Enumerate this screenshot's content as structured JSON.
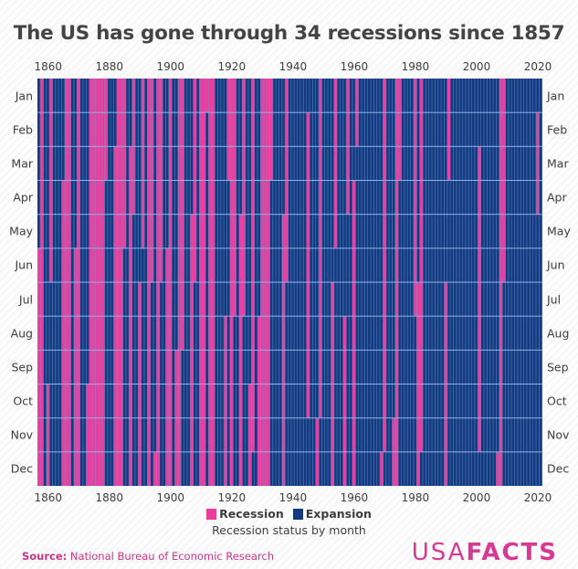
{
  "colors": {
    "recession": "#ee3c9e",
    "expansion": "#123a80",
    "separator": "#5f86c2",
    "rowline": "#8fb1e6",
    "brand": "#d63a93"
  },
  "chart_data": {
    "type": "heatmap",
    "title": "The US has gone through 34 recessions since 1857",
    "xlabel": "",
    "ylabel": "",
    "x_range": [
      1857,
      2021
    ],
    "x_ticks": [
      "1860",
      "1880",
      "1900",
      "1920",
      "1940",
      "1960",
      "1980",
      "2000",
      "2020"
    ],
    "y_categories": [
      "Jan",
      "Feb",
      "Mar",
      "Apr",
      "May",
      "Jun",
      "Jul",
      "Aug",
      "Sep",
      "Oct",
      "Nov",
      "Dec"
    ],
    "legend": [
      {
        "label": "Recession",
        "color": "#ee3c9e"
      },
      {
        "label": "Expansion",
        "color": "#123a80"
      }
    ],
    "legend_subtitle": "Recession status by month",
    "legend_placement": "bottom",
    "recession_periods": [
      {
        "start": "1857-06",
        "end": "1858-12"
      },
      {
        "start": "1860-10",
        "end": "1861-06"
      },
      {
        "start": "1865-04",
        "end": "1867-12"
      },
      {
        "start": "1869-06",
        "end": "1870-12"
      },
      {
        "start": "1873-10",
        "end": "1879-03"
      },
      {
        "start": "1882-03",
        "end": "1885-05"
      },
      {
        "start": "1887-03",
        "end": "1888-04"
      },
      {
        "start": "1890-07",
        "end": "1891-05"
      },
      {
        "start": "1893-01",
        "end": "1894-06"
      },
      {
        "start": "1895-12",
        "end": "1897-06"
      },
      {
        "start": "1899-06",
        "end": "1900-12"
      },
      {
        "start": "1902-09",
        "end": "1904-08"
      },
      {
        "start": "1907-05",
        "end": "1908-06"
      },
      {
        "start": "1910-01",
        "end": "1912-01"
      },
      {
        "start": "1913-01",
        "end": "1914-12"
      },
      {
        "start": "1918-08",
        "end": "1919-03"
      },
      {
        "start": "1920-01",
        "end": "1921-07"
      },
      {
        "start": "1923-05",
        "end": "1924-07"
      },
      {
        "start": "1926-10",
        "end": "1927-11"
      },
      {
        "start": "1929-08",
        "end": "1933-03"
      },
      {
        "start": "1937-05",
        "end": "1938-06"
      },
      {
        "start": "1945-02",
        "end": "1945-10"
      },
      {
        "start": "1948-11",
        "end": "1949-10"
      },
      {
        "start": "1953-07",
        "end": "1954-05"
      },
      {
        "start": "1957-08",
        "end": "1958-04"
      },
      {
        "start": "1960-04",
        "end": "1961-02"
      },
      {
        "start": "1969-12",
        "end": "1970-11"
      },
      {
        "start": "1973-11",
        "end": "1975-03"
      },
      {
        "start": "1980-01",
        "end": "1980-07"
      },
      {
        "start": "1981-07",
        "end": "1982-11"
      },
      {
        "start": "1990-07",
        "end": "1991-03"
      },
      {
        "start": "2001-03",
        "end": "2001-11"
      },
      {
        "start": "2007-12",
        "end": "2009-06"
      },
      {
        "start": "2020-02",
        "end": "2020-04"
      }
    ]
  },
  "footer": {
    "source_label": "Source:",
    "source_text": " National Bureau of Economic Research",
    "logo_thin": "USA",
    "logo_bold": "FACTS"
  }
}
